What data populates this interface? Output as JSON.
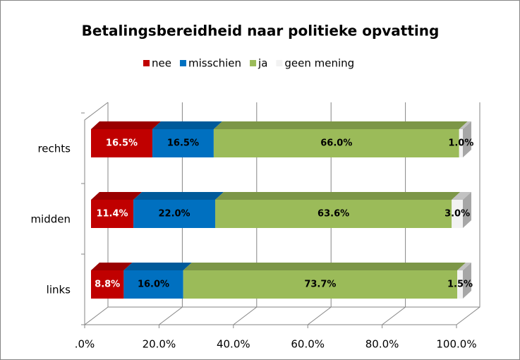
{
  "chart_data": {
    "type": "bar3d_stacked_horizontal",
    "title": "Betalingsbereidheid naar politieke opvatting",
    "categories": [
      "links",
      "midden",
      "rechts"
    ],
    "series": [
      {
        "name": "nee",
        "color": "#c00000",
        "values": [
          8.8,
          11.4,
          16.5
        ],
        "value_labels": [
          "8.8%",
          "11.4%",
          "16.5%"
        ]
      },
      {
        "name": "misschien",
        "color": "#0070c0",
        "values": [
          16.0,
          22.0,
          16.5
        ],
        "value_labels": [
          "16.0%",
          "22.0%",
          "16.5%"
        ]
      },
      {
        "name": "ja",
        "color": "#9bbb59",
        "values": [
          73.7,
          63.6,
          66.0
        ],
        "value_labels": [
          "73.7%",
          "63.6%",
          "66.0%"
        ]
      },
      {
        "name": "geen mening",
        "color": "#f2f2f2",
        "values": [
          1.5,
          3.0,
          1.0
        ],
        "value_labels": [
          "1.5%",
          "3.0%",
          "1.0%"
        ]
      }
    ],
    "xlim": [
      0,
      100
    ],
    "xticks": [
      {
        "value": 0,
        "label": ".0%"
      },
      {
        "value": 20,
        "label": "20.0%"
      },
      {
        "value": 40,
        "label": "40.0%"
      },
      {
        "value": 60,
        "label": "60.0%"
      },
      {
        "value": 80,
        "label": "80.0%"
      },
      {
        "value": 100,
        "label": "100.0%"
      }
    ],
    "grid": true,
    "legend": "top"
  }
}
